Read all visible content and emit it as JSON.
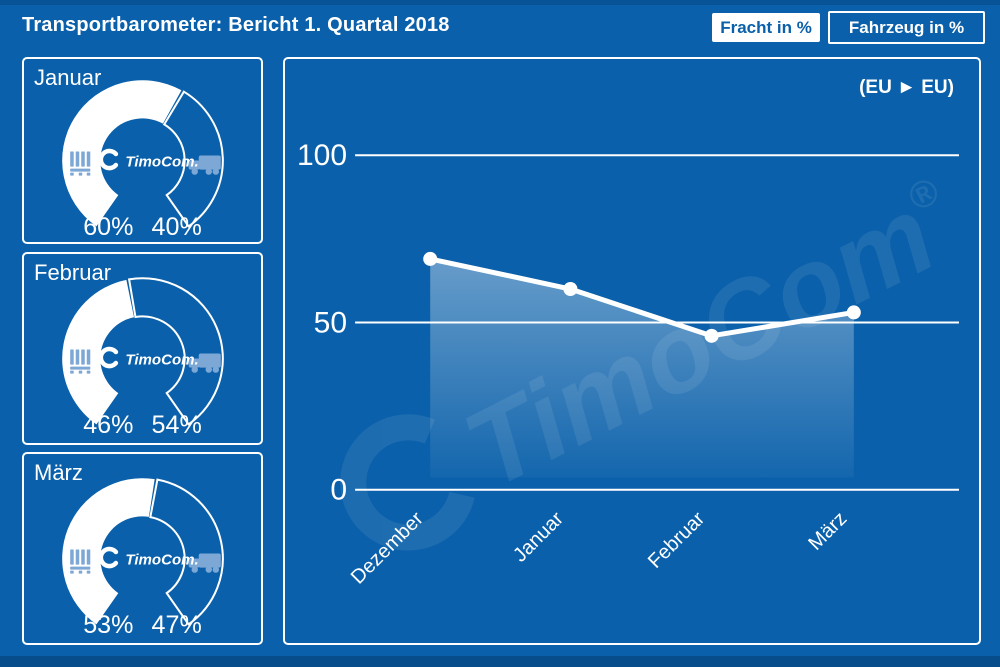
{
  "title": "Transportbarometer: Bericht 1. Quartal 2018",
  "buttons": [
    {
      "label": "Fracht in %",
      "active": true
    },
    {
      "label": "Fahrzeug in %",
      "active": false
    }
  ],
  "colors": {
    "background": "#0a60aa",
    "panel_border": "#ffffff",
    "icon_light_blue": "#7da8d5",
    "active_button_text": "#0a60aa",
    "line": "#ffffff"
  },
  "brand": {
    "logo_text": "TimoCom.",
    "watermark_text": "TimoCom",
    "registered_mark": "®"
  },
  "icons": {
    "fracht": "pallet-boxes-icon",
    "fahrzeug": "truck-icon"
  },
  "gauges": [
    {
      "month": "Januar",
      "fracht_pct": 60,
      "fahrzeug_pct": 40,
      "fracht_label": "60%",
      "fahrzeug_label": "40%"
    },
    {
      "month": "Februar",
      "fracht_pct": 46,
      "fahrzeug_pct": 54,
      "fracht_label": "46%",
      "fahrzeug_label": "54%"
    },
    {
      "month": "März",
      "fracht_pct": 53,
      "fahrzeug_pct": 47,
      "fracht_label": "53%",
      "fahrzeug_label": "47%"
    }
  ],
  "chart_data": {
    "type": "line",
    "title": "(EU ► EU)",
    "x": [
      "Dezember",
      "Januar",
      "Februar",
      "März"
    ],
    "series": [
      {
        "name": "Fracht in %",
        "values": [
          69,
          60,
          46,
          53
        ]
      }
    ],
    "ylim": [
      0,
      100
    ],
    "yticks": [
      0,
      50,
      100
    ],
    "ytick_labels": [
      "0",
      "50",
      "100"
    ],
    "grid": true,
    "legend_position": "none",
    "area_fill": true
  }
}
